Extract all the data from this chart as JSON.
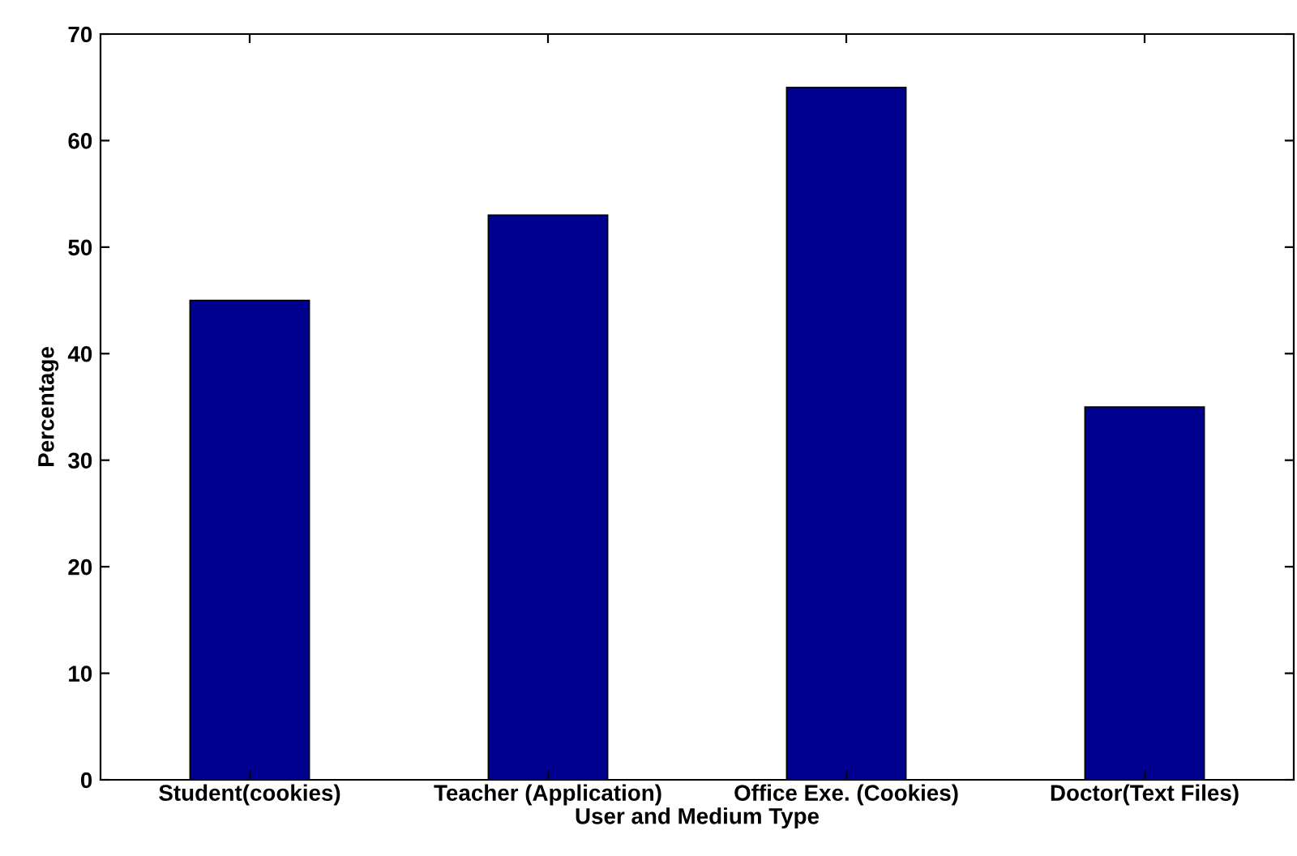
{
  "chart_data": {
    "type": "bar",
    "xlabel": "User and Medium Type",
    "ylabel": "Percentage",
    "categories": [
      "Student(cookies)",
      "Teacher (Application)",
      "Office Exe. (Cookies)",
      "Doctor(Text Files)"
    ],
    "values": [
      45,
      53,
      65,
      35
    ],
    "color": "#00008f",
    "ylim": [
      0,
      70
    ],
    "yticks": [
      0,
      10,
      20,
      30,
      40,
      50,
      60,
      70
    ],
    "grid": false,
    "legend": false
  }
}
